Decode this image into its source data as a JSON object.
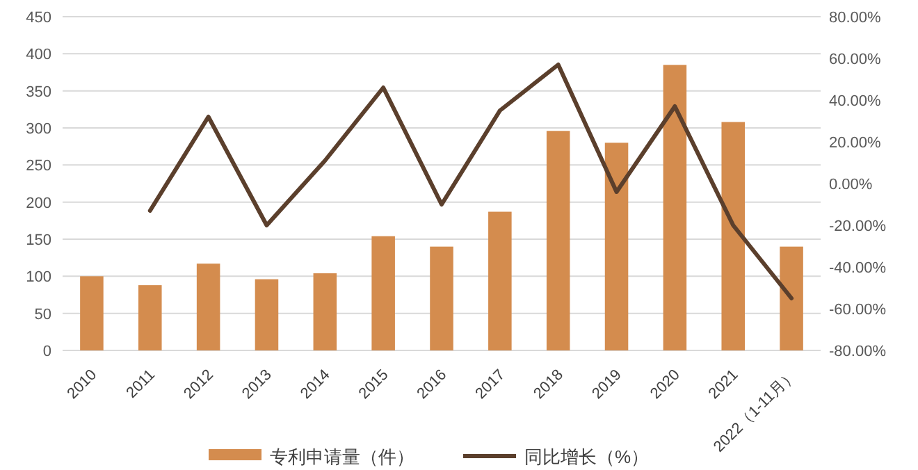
{
  "chart_data": {
    "type": "bar",
    "categories": [
      "2010",
      "2011",
      "2012",
      "2013",
      "2014",
      "2015",
      "2016",
      "2017",
      "2018",
      "2019",
      "2020",
      "2021",
      "2022（1-11月）"
    ],
    "series": [
      {
        "name": "专利申请量（件）",
        "color": "#d48c4e",
        "values": [
          100,
          88,
          117,
          96,
          104,
          154,
          140,
          187,
          296,
          280,
          385,
          308,
          140
        ]
      },
      {
        "name": "同比增长（%）",
        "type": "line",
        "axis": "y2",
        "color": "#5b3f2c",
        "values": [
          null,
          -13,
          32,
          -20,
          11,
          46,
          -10,
          35,
          57,
          -4,
          37,
          -20,
          -55
        ]
      }
    ],
    "ylim": [
      0,
      450
    ],
    "yticks": [
      0,
      50,
      100,
      150,
      200,
      250,
      300,
      350,
      400,
      450
    ],
    "y2lim": [
      -80,
      80
    ],
    "y2ticks": [
      {
        "value": -80,
        "label": "-80.00%"
      },
      {
        "value": -60,
        "label": "-60.00%"
      },
      {
        "value": -40,
        "label": "-40.00%"
      },
      {
        "value": -20,
        "label": "-20.00%"
      },
      {
        "value": 0,
        "label": "0.00%"
      },
      {
        "value": 20,
        "label": "20.00%"
      },
      {
        "value": 40,
        "label": "40.00%"
      },
      {
        "value": 60,
        "label": "60.00%"
      },
      {
        "value": 80,
        "label": "80.00%"
      }
    ],
    "grid": "y",
    "legend": "bottom",
    "marker": "none",
    "line_style": "solid"
  }
}
